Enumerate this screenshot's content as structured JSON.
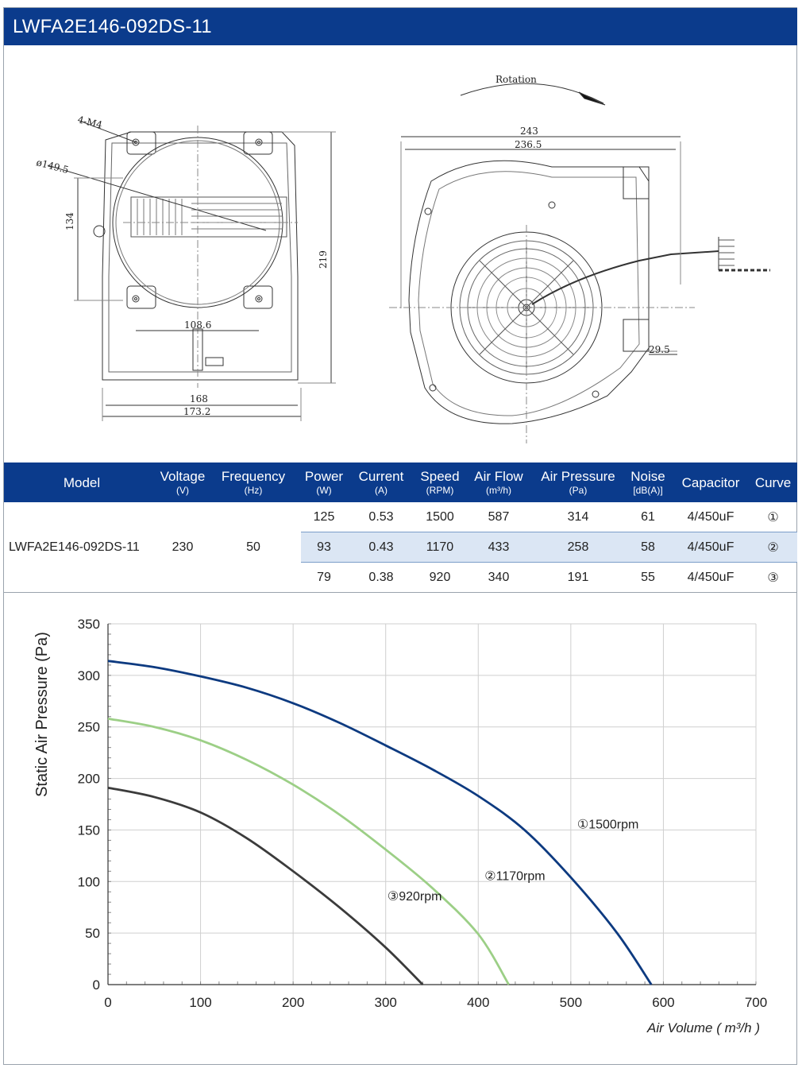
{
  "header": {
    "title": "LWFA2E146-092DS-11"
  },
  "drawing": {
    "rotation_label": "Rotation",
    "front_view_dims": {
      "bolt": "4-M4",
      "diameter": "ø149.5",
      "height_inner": "134",
      "height_total": "219",
      "span": "108.6",
      "width_inner": "168",
      "width_outer": "173.2"
    },
    "side_view_dims": {
      "width_outer": "243",
      "width_inner": "236.5",
      "offset": "29.5"
    }
  },
  "spec_table": {
    "columns": [
      {
        "label": "Model",
        "unit": ""
      },
      {
        "label": "Voltage",
        "unit": "(V)"
      },
      {
        "label": "Frequency",
        "unit": "(Hz)"
      },
      {
        "label": "Power",
        "unit": "(W)"
      },
      {
        "label": "Current",
        "unit": "(A)"
      },
      {
        "label": "Speed",
        "unit": "(RPM)"
      },
      {
        "label": "Air Flow",
        "unit": "(m³/h)"
      },
      {
        "label": "Air Pressure",
        "unit": "(Pa)"
      },
      {
        "label": "Noise",
        "unit": "[dB(A)]"
      },
      {
        "label": "Capacitor",
        "unit": ""
      },
      {
        "label": "Curve",
        "unit": ""
      }
    ],
    "model": "LWFA2E146-092DS-11",
    "voltage": "230",
    "frequency": "50",
    "rows": [
      {
        "power": "125",
        "current": "0.53",
        "speed": "1500",
        "air_flow": "587",
        "air_pressure": "314",
        "noise": "61",
        "capacitor": "4/450uF",
        "curve": "①"
      },
      {
        "power": "93",
        "current": "0.43",
        "speed": "1170",
        "air_flow": "433",
        "air_pressure": "258",
        "noise": "58",
        "capacitor": "4/450uF",
        "curve": "②"
      },
      {
        "power": "79",
        "current": "0.38",
        "speed": "920",
        "air_flow": "340",
        "air_pressure": "191",
        "noise": "55",
        "capacitor": "4/450uF",
        "curve": "③"
      }
    ]
  },
  "chart_data": {
    "type": "line",
    "ylabel": "Static Air Pressure  (Pa)",
    "xlabel": "Air Volume ( m³/h )",
    "xlim": [
      0,
      700
    ],
    "ylim": [
      0,
      350
    ],
    "xticks": [
      "0",
      "100",
      "200",
      "300",
      "400",
      "500",
      "600",
      "700"
    ],
    "yticks": [
      "0",
      "50",
      "100",
      "150",
      "200",
      "250",
      "300",
      "350"
    ],
    "grid": true,
    "series": [
      {
        "name": "①1500rpm",
        "color": "#0d3a80",
        "points": [
          [
            0,
            314
          ],
          [
            50,
            308
          ],
          [
            100,
            299
          ],
          [
            150,
            288
          ],
          [
            200,
            273
          ],
          [
            250,
            254
          ],
          [
            300,
            232
          ],
          [
            350,
            209
          ],
          [
            400,
            183
          ],
          [
            450,
            150
          ],
          [
            500,
            104
          ],
          [
            550,
            50
          ],
          [
            587,
            0
          ]
        ]
      },
      {
        "name": "②1170rpm",
        "color": "#9ccf86",
        "points": [
          [
            0,
            258
          ],
          [
            50,
            250
          ],
          [
            100,
            237
          ],
          [
            150,
            218
          ],
          [
            200,
            194
          ],
          [
            250,
            165
          ],
          [
            300,
            131
          ],
          [
            350,
            94
          ],
          [
            400,
            49
          ],
          [
            433,
            0
          ]
        ]
      },
      {
        "name": "③920rpm",
        "color": "#3b3b3b",
        "points": [
          [
            0,
            191
          ],
          [
            50,
            182
          ],
          [
            100,
            167
          ],
          [
            150,
            142
          ],
          [
            200,
            110
          ],
          [
            250,
            75
          ],
          [
            300,
            36
          ],
          [
            340,
            0
          ]
        ]
      }
    ]
  }
}
